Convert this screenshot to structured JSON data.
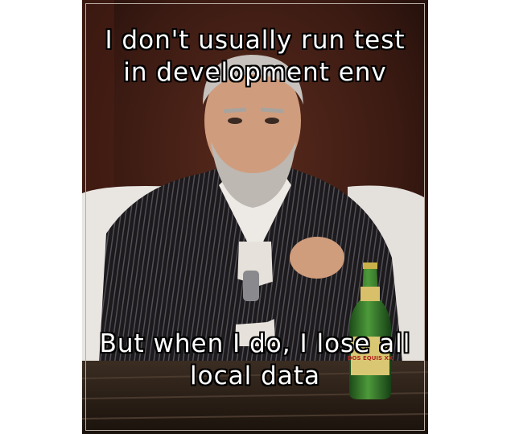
{
  "meme": {
    "top_text": "I don't usually run test in development env",
    "bottom_text": "But when I do, I lose all local data",
    "bottle_label": "DOS EQUIS XX"
  },
  "colors": {
    "background": "#1d1410",
    "wallpaper": "#3a1a12",
    "suit": "#1c1a1c",
    "chair": "#e9e6e2",
    "table": "#2a2018",
    "bottle": "#2f6a2a",
    "caption_text": "#ffffff"
  }
}
